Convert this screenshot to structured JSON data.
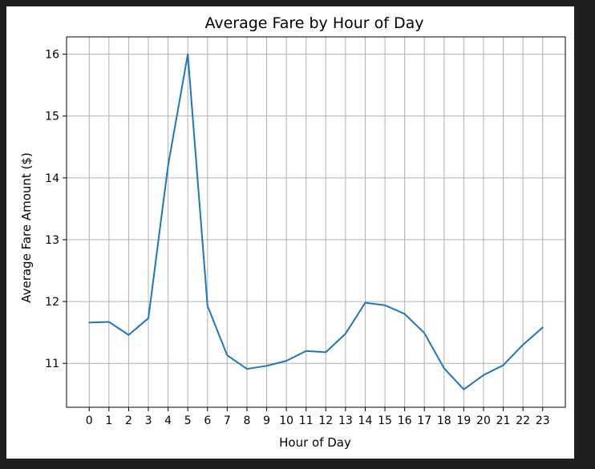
{
  "chart_data": {
    "type": "line",
    "title": "Average Fare by Hour of Day",
    "xlabel": "Hour of Day",
    "ylabel": "Average Fare Amount ($)",
    "x": [
      0,
      1,
      2,
      3,
      4,
      5,
      6,
      7,
      8,
      9,
      10,
      11,
      12,
      13,
      14,
      15,
      16,
      17,
      18,
      19,
      20,
      21,
      22,
      23
    ],
    "x_tick_labels": [
      "0",
      "1",
      "2",
      "3",
      "4",
      "5",
      "6",
      "7",
      "8",
      "9",
      "10",
      "11",
      "12",
      "13",
      "14",
      "15",
      "16",
      "17",
      "18",
      "19",
      "20",
      "21",
      "22",
      "23"
    ],
    "y_ticks": [
      11,
      12,
      13,
      14,
      15,
      16
    ],
    "y_tick_labels": [
      "11",
      "12",
      "13",
      "14",
      "15",
      "16"
    ],
    "xlim": [
      -1.15,
      24.15
    ],
    "ylim": [
      10.29,
      16.28
    ],
    "grid": true,
    "series": [
      {
        "color": "#1f77b4",
        "values": [
          11.66,
          11.67,
          11.46,
          11.73,
          14.2,
          16.0,
          11.93,
          11.13,
          10.91,
          10.96,
          11.04,
          11.2,
          11.18,
          11.48,
          11.98,
          11.94,
          11.8,
          11.49,
          10.92,
          10.58,
          10.81,
          10.97,
          11.3,
          11.58
        ]
      }
    ]
  }
}
